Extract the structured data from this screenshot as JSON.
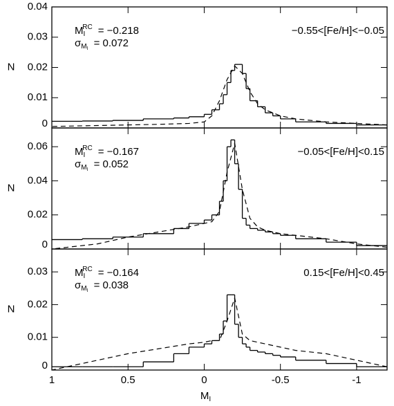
{
  "chart_data": [
    {
      "type": "histogram",
      "ylabel": "N",
      "xlim": [
        1,
        -1.2
      ],
      "xticks": [
        1,
        0.5,
        0,
        -0.5,
        -1
      ],
      "ylim": [
        0,
        0.04
      ],
      "yticks": [
        0,
        0.01,
        0.02,
        0.03,
        0.04
      ],
      "color": "#000000",
      "annotations": {
        "m_symbol": "M",
        "m_sub": "I",
        "m_sup": "RC",
        "m_value": "= −0.218",
        "sigma_symbol": "σ",
        "sigma_sub": "M",
        "sigma_subsub": "I",
        "sigma_value": "= 0.072",
        "feh": "−0.55<[Fe/H]<−0.05"
      },
      "bins": [
        -1.2,
        -1.0,
        -0.8,
        -0.6,
        -0.5,
        -0.45,
        -0.4,
        -0.35,
        -0.3,
        -0.275,
        -0.25,
        -0.225,
        -0.2,
        -0.175,
        -0.15,
        -0.125,
        -0.1,
        -0.05,
        0,
        0.1,
        0.2,
        0.4,
        0.6,
        0.8,
        1.0
      ],
      "values": [
        0.001,
        0.0015,
        0.002,
        0.003,
        0.004,
        0.005,
        0.007,
        0.009,
        0.013,
        0.018,
        0.021,
        0.021,
        0.019,
        0.015,
        0.011,
        0.008,
        0.006,
        0.0045,
        0.0037,
        0.0033,
        0.003,
        0.0025,
        0.0023,
        0.0022
      ],
      "fit_x": [
        -1.2,
        -1.0,
        -0.8,
        -0.6,
        -0.5,
        -0.4,
        -0.35,
        -0.3,
        -0.25,
        -0.2,
        -0.15,
        -0.1,
        -0.05,
        0,
        0.1,
        0.3,
        0.5,
        0.7,
        1.0
      ],
      "fit_values": [
        0.001,
        0.0015,
        0.002,
        0.003,
        0.004,
        0.006,
        0.008,
        0.012,
        0.018,
        0.0205,
        0.016,
        0.009,
        0.004,
        0.002,
        0.0015,
        0.0012,
        0.001,
        0.0008,
        0.0005
      ]
    },
    {
      "type": "histogram",
      "ylabel": "N",
      "xlim": [
        1,
        -1.2
      ],
      "xticks": [
        1,
        0.5,
        0,
        -0.5,
        -1
      ],
      "ylim": [
        0,
        0.071
      ],
      "yticks": [
        0,
        0.02,
        0.04,
        0.06
      ],
      "color": "#000000",
      "annotations": {
        "m_symbol": "M",
        "m_sub": "I",
        "m_sup": "RC",
        "m_value": "= −0.167",
        "sigma_symbol": "σ",
        "sigma_sub": "M",
        "sigma_subsub": "I",
        "sigma_value": "= 0.052",
        "feh": "−0.05<[Fe/H]<0.15"
      },
      "bins": [
        -1.2,
        -1.0,
        -0.8,
        -0.6,
        -0.5,
        -0.45,
        -0.4,
        -0.35,
        -0.3,
        -0.275,
        -0.25,
        -0.225,
        -0.2,
        -0.175,
        -0.15,
        -0.125,
        -0.1,
        -0.05,
        0,
        0.1,
        0.2,
        0.4,
        0.6,
        0.8,
        1.0
      ],
      "values": [
        0.002,
        0.004,
        0.006,
        0.008,
        0.009,
        0.01,
        0.011,
        0.012,
        0.014,
        0.018,
        0.035,
        0.05,
        0.064,
        0.06,
        0.04,
        0.028,
        0.02,
        0.017,
        0.015,
        0.012,
        0.009,
        0.007,
        0.006,
        0.0055
      ],
      "fit_x": [
        -1.2,
        -1.0,
        -0.8,
        -0.6,
        -0.5,
        -0.4,
        -0.35,
        -0.3,
        -0.25,
        -0.2,
        -0.15,
        -0.1,
        -0.05,
        0,
        0.1,
        0.3,
        0.5,
        0.7,
        1.0
      ],
      "fit_values": [
        0.001,
        0.003,
        0.006,
        0.008,
        0.009,
        0.011,
        0.013,
        0.018,
        0.035,
        0.062,
        0.045,
        0.022,
        0.016,
        0.015,
        0.013,
        0.01,
        0.007,
        0.003,
        0
      ]
    },
    {
      "type": "histogram",
      "ylabel": "N",
      "xlabel_symbol": "M",
      "xlabel_sub": "I",
      "xlim": [
        1,
        -1.2
      ],
      "xticks": [
        1,
        0.5,
        0,
        -0.5,
        -1
      ],
      "ylim": [
        0,
        0.037
      ],
      "yticks": [
        0,
        0.01,
        0.02,
        0.03
      ],
      "color": "#000000",
      "annotations": {
        "m_symbol": "M",
        "m_sub": "I",
        "m_sup": "RC",
        "m_value": "= −0.164",
        "sigma_symbol": "σ",
        "sigma_sub": "M",
        "sigma_subsub": "I",
        "sigma_value": "= 0.038",
        "feh": "0.15<[Fe/H]<0.45"
      },
      "bins": [
        -1.2,
        -1.0,
        -0.8,
        -0.6,
        -0.5,
        -0.45,
        -0.4,
        -0.35,
        -0.3,
        -0.275,
        -0.25,
        -0.225,
        -0.2,
        -0.175,
        -0.15,
        -0.125,
        -0.1,
        -0.05,
        0,
        0.1,
        0.2,
        0.4,
        0.6,
        0.8,
        1.0
      ],
      "values": [
        0.001,
        0.002,
        0.003,
        0.004,
        0.0045,
        0.005,
        0.0055,
        0.006,
        0.007,
        0.008,
        0.01,
        0.014,
        0.023,
        0.023,
        0.015,
        0.011,
        0.009,
        0.008,
        0.007,
        0.005,
        0.0025,
        0.001,
        0.001,
        0.001
      ],
      "fit_x": [
        -1.2,
        -1.0,
        -0.8,
        -0.6,
        -0.5,
        -0.4,
        -0.35,
        -0.3,
        -0.25,
        -0.2,
        -0.15,
        -0.1,
        -0.05,
        0,
        0.1,
        0.3,
        0.5,
        0.7,
        1.0
      ],
      "fit_values": [
        0.001,
        0.003,
        0.005,
        0.006,
        0.007,
        0.008,
        0.0085,
        0.009,
        0.011,
        0.022,
        0.015,
        0.009,
        0.009,
        0.0085,
        0.008,
        0.0065,
        0.005,
        0.003,
        0
      ]
    }
  ]
}
